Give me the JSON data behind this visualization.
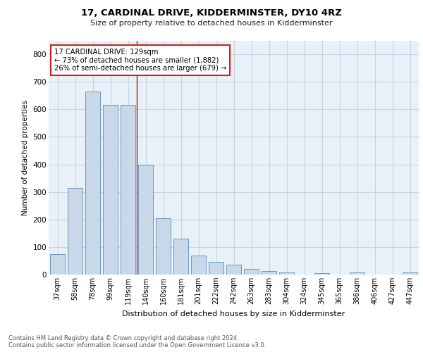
{
  "title": "17, CARDINAL DRIVE, KIDDERMINSTER, DY10 4RZ",
  "subtitle": "Size of property relative to detached houses in Kidderminster",
  "xlabel": "Distribution of detached houses by size in Kidderminster",
  "ylabel": "Number of detached properties",
  "categories": [
    "37sqm",
    "58sqm",
    "78sqm",
    "99sqm",
    "119sqm",
    "140sqm",
    "160sqm",
    "181sqm",
    "201sqm",
    "222sqm",
    "242sqm",
    "263sqm",
    "283sqm",
    "304sqm",
    "324sqm",
    "345sqm",
    "365sqm",
    "386sqm",
    "406sqm",
    "427sqm",
    "447sqm"
  ],
  "values": [
    75,
    315,
    665,
    615,
    615,
    400,
    205,
    130,
    70,
    45,
    35,
    20,
    12,
    7,
    0,
    5,
    0,
    8,
    0,
    0,
    8
  ],
  "bar_color": "#c8d8e8",
  "bar_edge_color": "#5b8db8",
  "vline_x": 4.5,
  "vline_color": "#aa2222",
  "annotation_box_color": "#cc2222",
  "ylim": [
    0,
    850
  ],
  "yticks": [
    0,
    100,
    200,
    300,
    400,
    500,
    600,
    700,
    800
  ],
  "grid_color": "#c5d5e5",
  "bg_color": "#e8f0f8",
  "footer_line1": "Contains HM Land Registry data © Crown copyright and database right 2024.",
  "footer_line2": "Contains public sector information licensed under the Open Government Licence v3.0."
}
